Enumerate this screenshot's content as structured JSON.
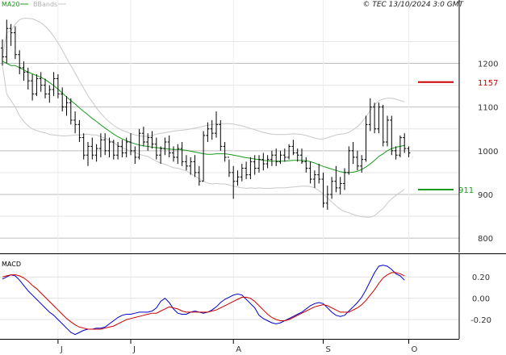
{
  "chart_data": [
    {
      "type": "ohlc",
      "legend": {
        "ma_label": "MA20",
        "bb_label": "BBands"
      },
      "copyright": "© TEC 13/10/2024 3:0 GMT",
      "colors": {
        "ma": "#1a9a1a",
        "bands": "#c8c8c8",
        "bars": "#000000",
        "resistance": "#cc0000",
        "support": "#1a9a1a"
      },
      "y_ticks": [
        "1200",
        "1100",
        "1000",
        "900",
        "800"
      ],
      "ylim": [
        767,
        1345
      ],
      "x_ticks": [
        {
          "label": "J",
          "index": 13
        },
        {
          "label": "J",
          "index": 30
        },
        {
          "label": "A",
          "index": 54
        },
        {
          "label": "S",
          "index": 75
        },
        {
          "label": "O",
          "index": 95
        }
      ],
      "resistance": {
        "value": 1157,
        "label": "1157"
      },
      "support": {
        "value": 911,
        "label": "911"
      },
      "ohlc": [
        [
          1235,
          1255,
          1195,
          1215
        ],
        [
          1215,
          1300,
          1200,
          1280
        ],
        [
          1280,
          1290,
          1240,
          1270
        ],
        [
          1270,
          1285,
          1210,
          1220
        ],
        [
          1220,
          1230,
          1175,
          1190
        ],
        [
          1190,
          1205,
          1160,
          1180
        ],
        [
          1180,
          1190,
          1140,
          1160
        ],
        [
          1160,
          1175,
          1115,
          1130
        ],
        [
          1130,
          1175,
          1125,
          1165
        ],
        [
          1165,
          1180,
          1135,
          1150
        ],
        [
          1150,
          1165,
          1120,
          1130
        ],
        [
          1130,
          1150,
          1110,
          1140
        ],
        [
          1140,
          1180,
          1125,
          1165
        ],
        [
          1165,
          1175,
          1120,
          1130
        ],
        [
          1130,
          1145,
          1090,
          1100
        ],
        [
          1100,
          1125,
          1080,
          1110
        ],
        [
          1110,
          1120,
          1060,
          1070
        ],
        [
          1070,
          1090,
          1040,
          1060
        ],
        [
          1060,
          1070,
          1020,
          1030
        ],
        [
          1030,
          1040,
          980,
          990
        ],
        [
          990,
          1020,
          965,
          1010
        ],
        [
          1010,
          1030,
          980,
          990
        ],
        [
          990,
          1015,
          975,
          1005
        ],
        [
          1005,
          1040,
          985,
          1025
        ],
        [
          1025,
          1040,
          990,
          1000
        ],
        [
          1000,
          1030,
          985,
          1020
        ],
        [
          1020,
          1025,
          980,
          990
        ],
        [
          990,
          1020,
          980,
          1010
        ],
        [
          1010,
          1025,
          985,
          995
        ],
        [
          995,
          1030,
          985,
          1020
        ],
        [
          1020,
          1040,
          990,
          1000
        ],
        [
          1000,
          1010,
          970,
          985
        ],
        [
          985,
          1050,
          980,
          1040
        ],
        [
          1040,
          1055,
          1010,
          1020
        ],
        [
          1020,
          1040,
          1000,
          1030
        ],
        [
          1030,
          1045,
          1005,
          1015
        ],
        [
          1015,
          1030,
          980,
          990
        ],
        [
          990,
          1010,
          970,
          1005
        ],
        [
          1005,
          1030,
          990,
          1020
        ],
        [
          1020,
          1035,
          985,
          995
        ],
        [
          995,
          1010,
          975,
          985
        ],
        [
          985,
          1015,
          970,
          1005
        ],
        [
          1005,
          1020,
          965,
          975
        ],
        [
          975,
          990,
          955,
          965
        ],
        [
          965,
          985,
          945,
          975
        ],
        [
          975,
          990,
          940,
          950
        ],
        [
          950,
          965,
          920,
          930
        ],
        [
          930,
          1045,
          930,
          1035
        ],
        [
          1035,
          1065,
          1020,
          1050
        ],
        [
          1050,
          1070,
          1025,
          1040
        ],
        [
          1040,
          1090,
          1030,
          1060
        ],
        [
          1060,
          1070,
          1000,
          1010
        ],
        [
          1010,
          1020,
          975,
          985
        ],
        [
          985,
          980,
          940,
          950
        ],
        [
          950,
          965,
          890,
          930
        ],
        [
          930,
          955,
          920,
          940
        ],
        [
          940,
          970,
          930,
          960
        ],
        [
          960,
          975,
          935,
          945
        ],
        [
          945,
          985,
          935,
          975
        ],
        [
          975,
          990,
          945,
          960
        ],
        [
          960,
          990,
          950,
          980
        ],
        [
          980,
          995,
          955,
          970
        ],
        [
          970,
          990,
          960,
          980
        ],
        [
          980,
          1000,
          965,
          990
        ],
        [
          990,
          1005,
          965,
          975
        ],
        [
          975,
          1000,
          970,
          990
        ],
        [
          990,
          1005,
          975,
          985
        ],
        [
          985,
          1015,
          980,
          1010
        ],
        [
          1010,
          1025,
          990,
          995
        ],
        [
          995,
          1005,
          975,
          990
        ],
        [
          990,
          1005,
          970,
          975
        ],
        [
          975,
          985,
          950,
          960
        ],
        [
          960,
          975,
          925,
          935
        ],
        [
          935,
          955,
          915,
          945
        ],
        [
          945,
          970,
          925,
          935
        ],
        [
          935,
          950,
          870,
          880
        ],
        [
          880,
          920,
          865,
          900
        ],
        [
          900,
          940,
          890,
          930
        ],
        [
          930,
          965,
          905,
          915
        ],
        [
          915,
          940,
          900,
          925
        ],
        [
          925,
          960,
          910,
          950
        ],
        [
          950,
          1010,
          945,
          1000
        ],
        [
          1000,
          1020,
          970,
          985
        ],
        [
          985,
          1000,
          955,
          965
        ],
        [
          965,
          990,
          950,
          980
        ],
        [
          980,
          1080,
          975,
          1060
        ],
        [
          1060,
          1120,
          1045,
          1100
        ],
        [
          1100,
          1110,
          1040,
          1050
        ],
        [
          1050,
          1110,
          1040,
          1100
        ],
        [
          1100,
          1105,
          1010,
          1020
        ],
        [
          1020,
          1080,
          1010,
          1070
        ],
        [
          1070,
          1080,
          990,
          1000
        ],
        [
          1000,
          1010,
          980,
          990
        ],
        [
          990,
          1035,
          985,
          1030
        ],
        [
          1030,
          1040,
          995,
          1005
        ],
        [
          1005,
          1010,
          985,
          995
        ]
      ],
      "ma20": [
        1205,
        1200,
        1195,
        1195,
        1190,
        1185,
        1180,
        1176,
        1172,
        1168,
        1163,
        1156,
        1149,
        1141,
        1132,
        1123,
        1115,
        1107,
        1098,
        1090,
        1082,
        1074,
        1067,
        1059,
        1052,
        1045,
        1038,
        1032,
        1027,
        1023,
        1019,
        1016,
        1013,
        1011,
        1010,
        1008,
        1007,
        1006,
        1005,
        1004,
        1003,
        1003,
        1002,
        1001,
        999,
        997,
        995,
        993,
        992,
        992,
        993,
        993,
        993,
        992,
        990,
        988,
        986,
        984,
        983,
        981,
        980,
        978,
        977,
        976,
        976,
        976,
        976,
        977,
        978,
        978,
        978,
        977,
        975,
        972,
        968,
        964,
        961,
        958,
        955,
        952,
        950,
        950,
        951,
        953,
        957,
        963,
        970,
        978,
        987,
        993,
        1000,
        1005,
        1008,
        1010,
        1012
      ],
      "bb_upper": [
        1215,
        1270,
        1275,
        1290,
        1300,
        1303,
        1303,
        1302,
        1298,
        1293,
        1285,
        1275,
        1262,
        1247,
        1230,
        1212,
        1195,
        1178,
        1160,
        1143,
        1126,
        1112,
        1098,
        1086,
        1075,
        1066,
        1058,
        1052,
        1047,
        1043,
        1039,
        1036,
        1034,
        1033,
        1033,
        1035,
        1038,
        1040,
        1041,
        1043,
        1045,
        1046,
        1047,
        1048,
        1050,
        1052,
        1054,
        1056,
        1058,
        1060,
        1061,
        1062,
        1062,
        1062,
        1061,
        1059,
        1057,
        1054,
        1051,
        1048,
        1045,
        1042,
        1040,
        1038,
        1037,
        1037,
        1037,
        1038,
        1039,
        1038,
        1037,
        1035,
        1032,
        1029,
        1027,
        1027,
        1030,
        1033,
        1036,
        1038,
        1039,
        1042,
        1048,
        1055,
        1065,
        1078,
        1092,
        1105,
        1114,
        1118,
        1120,
        1120,
        1118,
        1115,
        1112
      ],
      "bb_lower": [
        1195,
        1130,
        1115,
        1100,
        1080,
        1067,
        1057,
        1050,
        1046,
        1043,
        1041,
        1037,
        1036,
        1035,
        1034,
        1034,
        1035,
        1036,
        1036,
        1037,
        1038,
        1036,
        1036,
        1032,
        1029,
        1024,
        1018,
        1012,
        1007,
        1003,
        999,
        996,
        992,
        989,
        987,
        981,
        976,
        972,
        969,
        965,
        961,
        960,
        957,
        954,
        948,
        942,
        936,
        930,
        926,
        924,
        925,
        924,
        924,
        922,
        919,
        917,
        915,
        914,
        915,
        914,
        915,
        914,
        914,
        914,
        915,
        915,
        915,
        916,
        917,
        918,
        919,
        919,
        918,
        915,
        909,
        901,
        892,
        883,
        874,
        866,
        861,
        858,
        854,
        851,
        849,
        848,
        848,
        851,
        860,
        868,
        880,
        890,
        898,
        905,
        912
      ]
    },
    {
      "type": "line",
      "title": "MACD",
      "y_ticks": [
        "0.20",
        "0.00",
        "-0.20"
      ],
      "ylim": [
        -0.32,
        0.3
      ],
      "series": [
        {
          "color": "#0000cc",
          "values": [
            0.18,
            0.2,
            0.22,
            0.21,
            0.17,
            0.12,
            0.07,
            0.03,
            -0.01,
            -0.05,
            -0.09,
            -0.13,
            -0.16,
            -0.2,
            -0.24,
            -0.28,
            -0.32,
            -0.34,
            -0.32,
            -0.3,
            -0.29,
            -0.29,
            -0.28,
            -0.28,
            -0.27,
            -0.24,
            -0.21,
            -0.18,
            -0.16,
            -0.15,
            -0.15,
            -0.14,
            -0.13,
            -0.13,
            -0.13,
            -0.12,
            -0.09,
            -0.03,
            0.0,
            -0.04,
            -0.1,
            -0.14,
            -0.15,
            -0.15,
            -0.13,
            -0.12,
            -0.13,
            -0.14,
            -0.13,
            -0.11,
            -0.08,
            -0.04,
            -0.01,
            0.01,
            0.03,
            0.04,
            0.03,
            -0.01,
            -0.05,
            -0.09,
            -0.16,
            -0.19,
            -0.21,
            -0.23,
            -0.24,
            -0.23,
            -0.21,
            -0.19,
            -0.17,
            -0.15,
            -0.13,
            -0.1,
            -0.07,
            -0.05,
            -0.04,
            -0.05,
            -0.09,
            -0.13,
            -0.16,
            -0.17,
            -0.16,
            -0.12,
            -0.08,
            -0.04,
            0.01,
            0.08,
            0.16,
            0.24,
            0.3,
            0.31,
            0.3,
            0.27,
            0.23,
            0.21,
            0.17
          ]
        },
        {
          "color": "#cc0000",
          "values": [
            0.2,
            0.21,
            0.22,
            0.22,
            0.21,
            0.19,
            0.16,
            0.12,
            0.09,
            0.05,
            0.01,
            -0.03,
            -0.07,
            -0.11,
            -0.15,
            -0.19,
            -0.22,
            -0.25,
            -0.27,
            -0.28,
            -0.29,
            -0.29,
            -0.29,
            -0.29,
            -0.28,
            -0.27,
            -0.26,
            -0.24,
            -0.22,
            -0.2,
            -0.19,
            -0.18,
            -0.17,
            -0.16,
            -0.15,
            -0.14,
            -0.14,
            -0.12,
            -0.1,
            -0.08,
            -0.09,
            -0.1,
            -0.12,
            -0.13,
            -0.13,
            -0.13,
            -0.13,
            -0.13,
            -0.13,
            -0.12,
            -0.11,
            -0.09,
            -0.07,
            -0.05,
            -0.03,
            -0.01,
            0.01,
            0.01,
            0.0,
            -0.03,
            -0.07,
            -0.11,
            -0.15,
            -0.18,
            -0.2,
            -0.21,
            -0.21,
            -0.2,
            -0.18,
            -0.16,
            -0.14,
            -0.12,
            -0.1,
            -0.08,
            -0.07,
            -0.06,
            -0.07,
            -0.09,
            -0.11,
            -0.13,
            -0.13,
            -0.13,
            -0.11,
            -0.09,
            -0.06,
            -0.02,
            0.03,
            0.08,
            0.14,
            0.19,
            0.22,
            0.24,
            0.24,
            0.23,
            0.21
          ]
        }
      ]
    }
  ]
}
